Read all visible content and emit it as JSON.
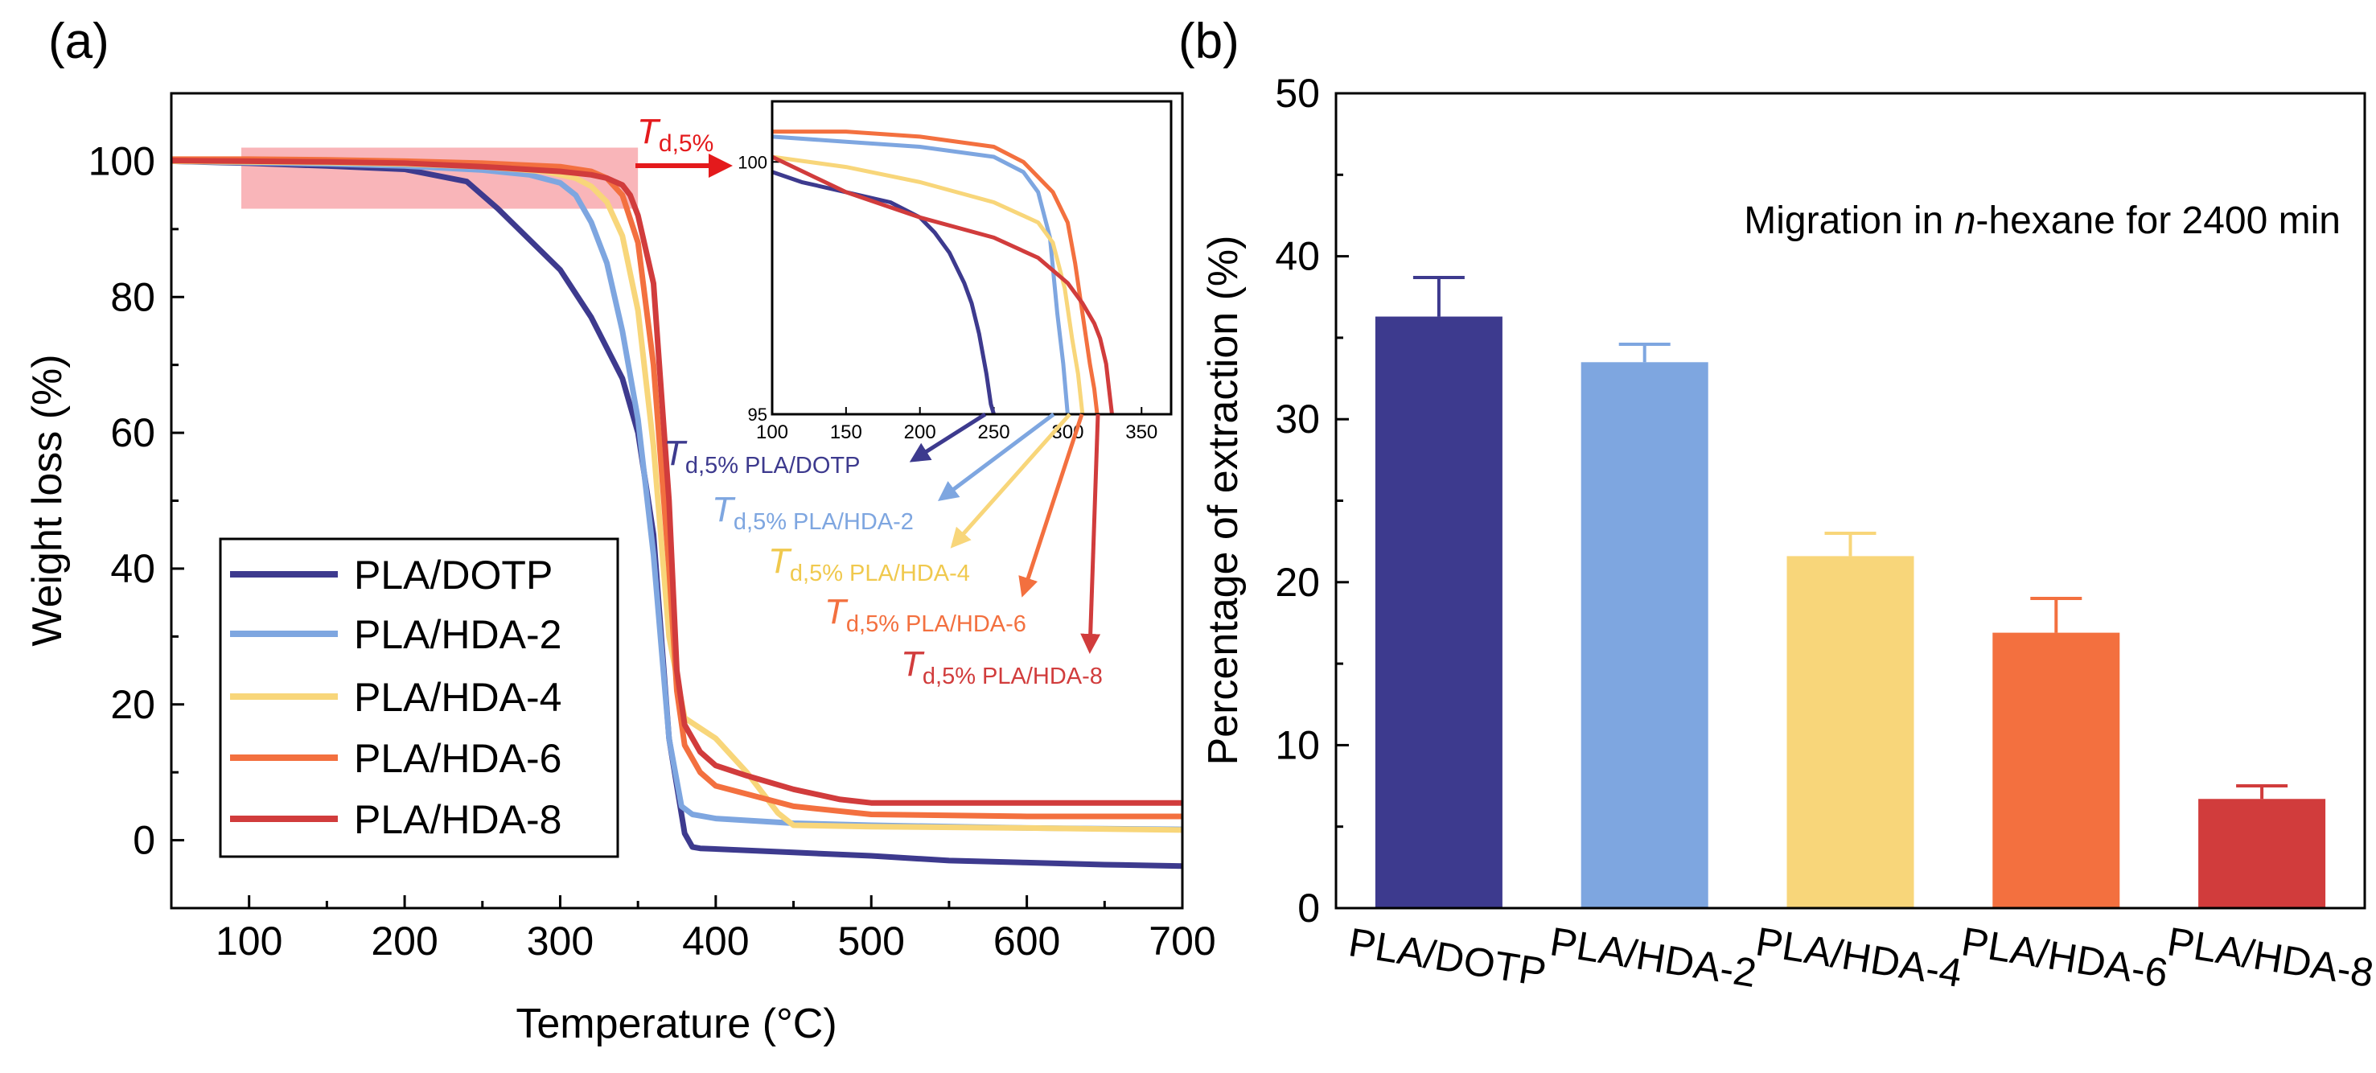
{
  "colors": {
    "PLA/DOTP": "#3d3a8e",
    "PLA/HDA-2": "#7ea6e0",
    "PLA/HDA-4": "#f8d67a",
    "PLA/HDA-6": "#f3703f",
    "PLA/HDA-8": "#d13c3c",
    "highlight": "#f7a3a8",
    "axis": "#000000"
  },
  "chart_data": [
    {
      "panel_label": "(a)",
      "type": "line",
      "xlabel": "Temperature (°C)",
      "ylabel": "Weight loss (%)",
      "xlim": [
        50,
        700
      ],
      "ylim": [
        -10,
        110
      ],
      "xticks": [
        100,
        200,
        300,
        400,
        500,
        600,
        700
      ],
      "yticks": [
        0,
        20,
        40,
        60,
        80,
        100
      ],
      "grid": false,
      "legend_position": "bottom-left",
      "highlight_region": {
        "x": [
          95,
          350
        ],
        "y": [
          93,
          102
        ]
      },
      "series": [
        {
          "name": "PLA/DOTP",
          "x": [
            50,
            100,
            150,
            200,
            240,
            260,
            280,
            300,
            320,
            340,
            350,
            360,
            370,
            380,
            385,
            390,
            450,
            500,
            550,
            600,
            650,
            700
          ],
          "y": [
            100,
            99.7,
            99.3,
            98.8,
            97,
            93,
            88.5,
            84,
            77,
            68,
            60,
            45,
            15,
            1,
            -1,
            -1.2,
            -1.8,
            -2.3,
            -3,
            -3.3,
            -3.6,
            -3.8
          ]
        },
        {
          "name": "PLA/HDA-2",
          "x": [
            50,
            100,
            150,
            200,
            250,
            280,
            300,
            310,
            320,
            330,
            340,
            350,
            360,
            370,
            378,
            385,
            400,
            450,
            500,
            600,
            700
          ],
          "y": [
            100,
            99.8,
            99.6,
            99.3,
            98.7,
            98,
            96.8,
            95,
            91,
            85,
            75,
            62,
            42,
            15,
            5,
            3.8,
            3.2,
            2.5,
            2.2,
            1.8,
            1.6
          ]
        },
        {
          "name": "PLA/HDA-4",
          "x": [
            50,
            100,
            150,
            200,
            250,
            290,
            310,
            320,
            330,
            340,
            350,
            360,
            370,
            380,
            390,
            400,
            420,
            440,
            450,
            500,
            600,
            700
          ],
          "y": [
            100,
            99.9,
            99.8,
            99.6,
            99.2,
            98.5,
            97.5,
            96.3,
            94,
            89,
            78,
            58,
            30,
            18,
            16.5,
            15,
            10,
            4,
            2.2,
            2,
            1.8,
            1.5
          ]
        },
        {
          "name": "PLA/HDA-6",
          "x": [
            50,
            100,
            150,
            200,
            250,
            300,
            320,
            330,
            340,
            350,
            360,
            370,
            375,
            380,
            390,
            400,
            450,
            500,
            600,
            700
          ],
          "y": [
            100.3,
            100.3,
            100.2,
            100,
            99.7,
            99.2,
            98.5,
            97.5,
            95,
            88,
            70,
            40,
            22,
            14,
            10,
            8,
            5,
            3.8,
            3.5,
            3.5
          ]
        },
        {
          "name": "PLA/HDA-8",
          "x": [
            50,
            100,
            150,
            200,
            250,
            300,
            320,
            330,
            340,
            345,
            350,
            360,
            370,
            375,
            380,
            390,
            400,
            420,
            450,
            480,
            500,
            600,
            700
          ],
          "y": [
            100.1,
            100,
            99.9,
            99.7,
            99.2,
            98.5,
            98,
            97.5,
            96.5,
            95,
            92,
            82,
            50,
            25,
            17,
            13,
            11,
            9.5,
            7.5,
            6,
            5.5,
            5.5,
            5.5
          ]
        }
      ],
      "annotations": [
        {
          "subscript": "d,5%",
          "symbol": "T",
          "color": "#e41a1c"
        },
        {
          "subscript": "d,5% PLA/DOTP",
          "symbol": "T",
          "color": "#3d3a8e"
        },
        {
          "subscript": "d,5% PLA/HDA-2",
          "symbol": "T",
          "color": "#7ea6e0"
        },
        {
          "subscript": "d,5% PLA/HDA-4",
          "symbol": "T",
          "color": "#f0c94e"
        },
        {
          "subscript": "d,5% PLA/HDA-6",
          "symbol": "T",
          "color": "#f3703f"
        },
        {
          "subscript": "d,5% PLA/HDA-8",
          "symbol": "T",
          "color": "#d13c3c"
        }
      ],
      "inset": {
        "xlim": [
          100,
          370
        ],
        "ylim": [
          95,
          101.2
        ],
        "xticks": [
          100,
          150,
          200,
          250,
          300,
          350
        ],
        "yticks": [
          95,
          100
        ],
        "series": [
          {
            "name": "PLA/DOTP",
            "x": [
              100,
              120,
              150,
              180,
              200,
              210,
              220,
              230,
              235,
              240,
              245,
              248,
              250
            ],
            "y": [
              99.8,
              99.6,
              99.4,
              99.2,
              98.9,
              98.6,
              98.2,
              97.6,
              97.2,
              96.6,
              95.8,
              95.2,
              95
            ]
          },
          {
            "name": "PLA/HDA-2",
            "x": [
              100,
              150,
              200,
              250,
              270,
              280,
              288,
              293,
              297,
              300
            ],
            "y": [
              100.5,
              100.4,
              100.3,
              100.1,
              99.8,
              99.4,
              98.5,
              97,
              96,
              95
            ]
          },
          {
            "name": "PLA/HDA-4",
            "x": [
              100,
              150,
              200,
              250,
              280,
              290,
              298,
              303,
              307,
              310
            ],
            "y": [
              100.1,
              99.9,
              99.6,
              99.2,
              98.8,
              98.4,
              97.5,
              96.5,
              95.8,
              95
            ]
          },
          {
            "name": "PLA/HDA-6",
            "x": [
              100,
              150,
              200,
              250,
              270,
              290,
              300,
              305,
              310,
              315,
              318,
              320
            ],
            "y": [
              100.6,
              100.6,
              100.5,
              100.3,
              100,
              99.4,
              98.8,
              98,
              97,
              96,
              95.5,
              95
            ]
          },
          {
            "name": "PLA/HDA-8",
            "x": [
              100,
              150,
              200,
              250,
              280,
              300,
              310,
              318,
              322,
              326,
              328,
              330
            ],
            "y": [
              100.1,
              99.4,
              98.9,
              98.5,
              98.1,
              97.6,
              97.2,
              96.8,
              96.5,
              96,
              95.5,
              95
            ]
          }
        ]
      }
    },
    {
      "panel_label": "(b)",
      "type": "bar",
      "ylabel": "Percentage of extraction (%)",
      "annotation": {
        "prefix": "Migration in ",
        "italic": "n",
        "suffix": "-hexane for 2400 min"
      },
      "ylim": [
        0,
        50
      ],
      "yticks": [
        0,
        10,
        20,
        30,
        40,
        50
      ],
      "grid": false,
      "categories": [
        "PLA/DOTP",
        "PLA/HDA-2",
        "PLA/HDA-4",
        "PLA/HDA-6",
        "PLA/HDA-8"
      ],
      "values": [
        36.3,
        33.5,
        21.6,
        16.9,
        6.7
      ],
      "errors": [
        2.4,
        1.1,
        1.4,
        2.1,
        0.8
      ]
    }
  ]
}
